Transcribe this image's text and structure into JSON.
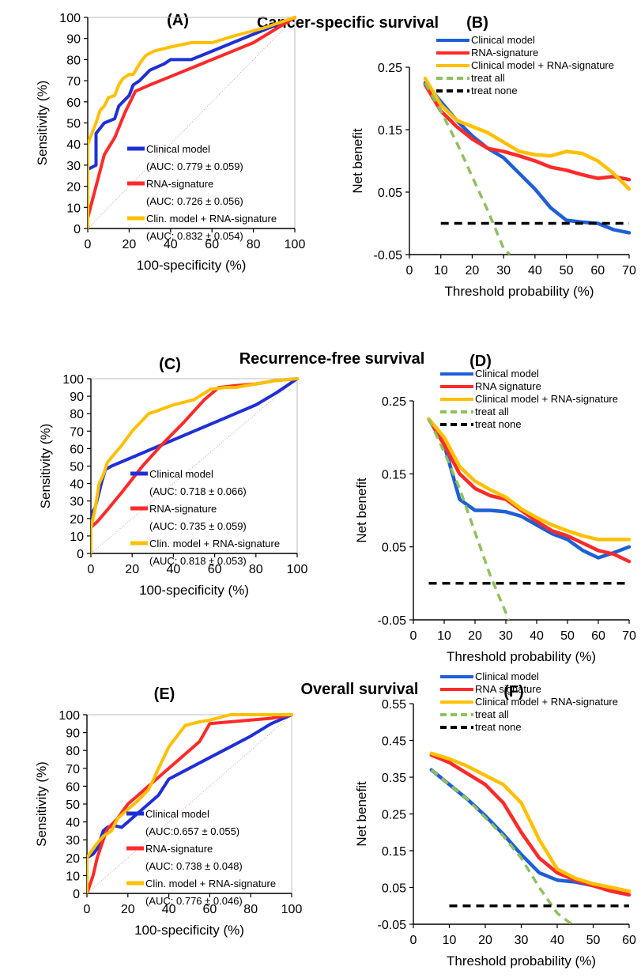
{
  "sections": [
    {
      "title": "Cancer-specific survival"
    },
    {
      "title": "Recurrence-free survival"
    },
    {
      "title": "Overall survival"
    }
  ],
  "chart_data": [
    {
      "id": "roc_A",
      "panel_label": "(A)",
      "type": "line",
      "xlabel": "100-specificity (%)",
      "ylabel": "Sensitivity (%)",
      "xlim": [
        0,
        100
      ],
      "ylim": [
        0,
        100
      ],
      "xticks": [
        0,
        20,
        40,
        60,
        80,
        100
      ],
      "yticks": [
        0,
        10,
        20,
        30,
        40,
        50,
        60,
        70,
        80,
        90,
        100
      ],
      "reference_line": {
        "x": [
          0,
          100
        ],
        "y": [
          0,
          100
        ],
        "color": "#d9a0a0"
      },
      "legend": {
        "placement": "bottom-right"
      },
      "series": [
        {
          "name": "Clinical model",
          "auc_label": "(AUC: 0.779 ± 0.059)",
          "color": "#1f2fd6",
          "x": [
            0,
            0,
            4,
            4,
            8,
            13,
            15,
            20,
            22,
            25,
            30,
            37,
            40,
            50,
            55,
            70,
            85,
            100
          ],
          "y": [
            0,
            28,
            30,
            45,
            50,
            52,
            58,
            63,
            68,
            70,
            75,
            78,
            80,
            80,
            82,
            88,
            94,
            100
          ]
        },
        {
          "name": "RNA-signature",
          "auc_label": "(AUC: 0.726 ± 0.056)",
          "color": "#ff2a2a",
          "x": [
            0,
            0,
            4,
            8,
            13,
            18,
            23,
            30,
            40,
            50,
            60,
            70,
            80,
            90,
            100
          ],
          "y": [
            0,
            5,
            20,
            35,
            43,
            55,
            65,
            68,
            72,
            76,
            80,
            84,
            88,
            94,
            100
          ]
        },
        {
          "name": "Clin. model + RNA-signature",
          "auc_label": "(AUC: 0.832 ± 0.054)",
          "color": "#ffc000",
          "x": [
            0,
            0,
            2,
            4,
            6,
            8,
            10,
            13,
            15,
            17,
            20,
            22,
            25,
            28,
            32,
            40,
            50,
            60,
            70,
            85,
            100
          ],
          "y": [
            0,
            40,
            45,
            50,
            56,
            58,
            62,
            63,
            68,
            71,
            73,
            73,
            78,
            82,
            84,
            86,
            88,
            88,
            91,
            95,
            100
          ]
        }
      ]
    },
    {
      "id": "dca_B",
      "panel_label": "(B)",
      "type": "line",
      "xlabel": "Threshold probability (%)",
      "ylabel": "Net benefit",
      "xlim": [
        0,
        70
      ],
      "ylim": [
        -0.05,
        0.25
      ],
      "xticks": [
        0,
        10,
        20,
        30,
        40,
        50,
        60,
        70
      ],
      "yticks": [
        -0.05,
        0.05,
        0.15,
        0.25
      ],
      "legend": {
        "placement": "top-right"
      },
      "series": [
        {
          "name": "Clinical model",
          "color": "#1f5fd6",
          "x": [
            5,
            10,
            15,
            20,
            25,
            30,
            35,
            40,
            45,
            50,
            55,
            60,
            65,
            70
          ],
          "y": [
            0.225,
            0.195,
            0.165,
            0.14,
            0.12,
            0.105,
            0.08,
            0.055,
            0.025,
            0.005,
            0.002,
            0.0,
            -0.01,
            -0.015
          ]
        },
        {
          "name": "RNA-signature",
          "color": "#ff2a2a",
          "x": [
            5,
            10,
            15,
            20,
            25,
            30,
            35,
            40,
            45,
            50,
            55,
            60,
            65,
            70
          ],
          "y": [
            0.222,
            0.18,
            0.155,
            0.135,
            0.12,
            0.115,
            0.108,
            0.1,
            0.09,
            0.085,
            0.078,
            0.072,
            0.075,
            0.07
          ]
        },
        {
          "name": "Clinical model + RNA-signature",
          "color": "#ffc000",
          "x": [
            5,
            10,
            15,
            20,
            25,
            30,
            35,
            40,
            45,
            50,
            55,
            60,
            65,
            70
          ],
          "y": [
            0.232,
            0.19,
            0.165,
            0.155,
            0.145,
            0.13,
            0.115,
            0.11,
            0.108,
            0.115,
            0.112,
            0.1,
            0.08,
            0.055
          ]
        },
        {
          "name": "treat all",
          "color": "#8fc060",
          "dashed": true,
          "x": [
            5,
            10,
            15,
            20,
            25,
            30,
            32
          ],
          "y": [
            0.225,
            0.18,
            0.13,
            0.075,
            0.02,
            -0.04,
            -0.05
          ]
        },
        {
          "name": "treat none",
          "color": "#000000",
          "dashed": true,
          "x": [
            10,
            70
          ],
          "y": [
            0,
            0
          ]
        }
      ]
    },
    {
      "id": "roc_C",
      "panel_label": "(C)",
      "type": "line",
      "xlabel": "100-specificity (%)",
      "ylabel": "Sensitivity (%)",
      "xlim": [
        0,
        100
      ],
      "ylim": [
        0,
        100
      ],
      "xticks": [
        0,
        20,
        40,
        60,
        80,
        100
      ],
      "yticks": [
        0,
        10,
        20,
        30,
        40,
        50,
        60,
        70,
        80,
        90,
        100
      ],
      "reference_line": {
        "x": [
          0,
          100
        ],
        "y": [
          0,
          100
        ],
        "color": "#d9a0a0"
      },
      "legend": {
        "placement": "bottom-right"
      },
      "series": [
        {
          "name": "Clinical model",
          "auc_label": "(AUC: 0.718 ± 0.066)",
          "color": "#1f2fd6",
          "x": [
            0,
            0,
            2,
            4,
            5,
            7,
            10,
            20,
            30,
            40,
            50,
            60,
            70,
            80,
            90,
            100
          ],
          "y": [
            0,
            22,
            26,
            35,
            40,
            48,
            50,
            55,
            60,
            65,
            70,
            75,
            80,
            85,
            92,
            100
          ]
        },
        {
          "name": "RNA-signature",
          "auc_label": "(AUC: 0.735 ± 0.059)",
          "color": "#ff2a2a",
          "x": [
            0,
            0,
            3,
            8,
            15,
            25,
            35,
            45,
            55,
            62,
            70,
            80,
            90,
            100
          ],
          "y": [
            0,
            15,
            18,
            25,
            35,
            50,
            63,
            75,
            88,
            95,
            96,
            97,
            99,
            100
          ]
        },
        {
          "name": "Clin. model + RNA-signature",
          "auc_label": "(AUC: 0.818 ± 0.053)",
          "color": "#ffc000",
          "x": [
            0,
            0,
            2,
            4,
            6,
            8,
            10,
            15,
            20,
            28,
            33,
            40,
            50,
            58,
            65,
            70,
            80,
            90,
            100
          ],
          "y": [
            0,
            15,
            25,
            40,
            45,
            52,
            55,
            62,
            70,
            80,
            82,
            85,
            88,
            94,
            95,
            95,
            97,
            99,
            100
          ]
        }
      ]
    },
    {
      "id": "dca_D",
      "panel_label": "(D)",
      "type": "line",
      "xlabel": "Threshold probability (%)",
      "ylabel": "Net benefit",
      "xlim": [
        0,
        70
      ],
      "ylim": [
        -0.05,
        0.25
      ],
      "xticks": [
        0,
        10,
        20,
        30,
        40,
        50,
        60,
        70
      ],
      "yticks": [
        -0.05,
        0.05,
        0.15,
        0.25
      ],
      "legend": {
        "placement": "top-right"
      },
      "series": [
        {
          "name": "Clinical model",
          "color": "#1f5fd6",
          "x": [
            5,
            10,
            15,
            20,
            25,
            30,
            35,
            40,
            45,
            50,
            55,
            60,
            65,
            70
          ],
          "y": [
            0.225,
            0.19,
            0.115,
            0.1,
            0.1,
            0.098,
            0.092,
            0.08,
            0.068,
            0.06,
            0.045,
            0.035,
            0.042,
            0.05
          ]
        },
        {
          "name": "RNA signature",
          "color": "#ff2a2a",
          "x": [
            5,
            10,
            15,
            20,
            25,
            30,
            35,
            40,
            45,
            50,
            55,
            60,
            65,
            70
          ],
          "y": [
            0.225,
            0.19,
            0.15,
            0.13,
            0.12,
            0.115,
            0.1,
            0.085,
            0.072,
            0.065,
            0.055,
            0.045,
            0.04,
            0.03
          ]
        },
        {
          "name": "Clinical model + RNA-signature",
          "color": "#ffc000",
          "x": [
            5,
            10,
            15,
            20,
            25,
            30,
            35,
            40,
            45,
            50,
            55,
            60,
            65,
            70
          ],
          "y": [
            0.225,
            0.2,
            0.16,
            0.14,
            0.128,
            0.118,
            0.102,
            0.09,
            0.08,
            0.072,
            0.065,
            0.06,
            0.06,
            0.06
          ]
        },
        {
          "name": "treat all",
          "color": "#8fc060",
          "dashed": true,
          "x": [
            5,
            10,
            15,
            20,
            25,
            30,
            31
          ],
          "y": [
            0.225,
            0.18,
            0.13,
            0.07,
            0.01,
            -0.04,
            -0.05
          ]
        },
        {
          "name": "treat none",
          "color": "#000000",
          "dashed": true,
          "x": [
            5,
            70
          ],
          "y": [
            0,
            0
          ]
        }
      ]
    },
    {
      "id": "roc_E",
      "panel_label": "(E)",
      "type": "line",
      "xlabel": "100-specificity (%)",
      "ylabel": "Sensitivity (%)",
      "xlim": [
        0,
        100
      ],
      "ylim": [
        0,
        100
      ],
      "xticks": [
        0,
        20,
        40,
        60,
        80,
        100
      ],
      "yticks": [
        0,
        10,
        20,
        30,
        40,
        50,
        60,
        70,
        80,
        90,
        100
      ],
      "reference_line": {
        "x": [
          0,
          100
        ],
        "y": [
          0,
          100
        ],
        "color": "#d9a0a0"
      },
      "legend": {
        "placement": "bottom-right"
      },
      "series": [
        {
          "name": "Clinical model",
          "auc_label": "(AUC:0.657 ± 0.055)",
          "color": "#1f2fd6",
          "x": [
            0,
            0,
            3,
            5,
            8,
            10,
            13,
            17,
            20,
            25,
            30,
            35,
            40,
            50,
            60,
            70,
            80,
            90,
            100
          ],
          "y": [
            0,
            20,
            22,
            25,
            35,
            37,
            38,
            37,
            40,
            45,
            50,
            55,
            64,
            70,
            76,
            82,
            88,
            95,
            100
          ]
        },
        {
          "name": "RNA-signature",
          "auc_label": "(AUC: 0.738 ± 0.048)",
          "color": "#ff2a2a",
          "x": [
            0,
            3,
            5,
            8,
            10,
            15,
            20,
            25,
            30,
            35,
            40,
            45,
            55,
            60,
            70,
            80,
            90,
            100
          ],
          "y": [
            0,
            10,
            20,
            30,
            36,
            42,
            50,
            55,
            60,
            65,
            70,
            75,
            85,
            95,
            96,
            97,
            98,
            100
          ]
        },
        {
          "name": "Clin. model + RNA-signature",
          "auc_label": "(AUC: 0.776 ± 0.046)",
          "color": "#ffc000",
          "x": [
            0,
            0,
            3,
            5,
            8,
            12,
            15,
            20,
            25,
            30,
            33,
            35,
            40,
            48,
            55,
            60,
            70,
            80,
            90,
            100
          ],
          "y": [
            0,
            20,
            25,
            28,
            32,
            35,
            42,
            47,
            52,
            58,
            65,
            70,
            82,
            94,
            96,
            97,
            100,
            100,
            100,
            100
          ]
        }
      ]
    },
    {
      "id": "dca_F",
      "panel_label": "(F)",
      "type": "line",
      "xlabel": "Threshold probability (%)",
      "ylabel": "Net benefit",
      "xlim": [
        0,
        60
      ],
      "ylim": [
        -0.05,
        0.55
      ],
      "xticks": [
        0,
        10,
        20,
        30,
        40,
        50,
        60
      ],
      "yticks": [
        -0.05,
        0.05,
        0.15,
        0.25,
        0.35,
        0.45,
        0.55
      ],
      "legend": {
        "placement": "top-right"
      },
      "series": [
        {
          "name": "Clinical model",
          "color": "#1f5fd6",
          "x": [
            5,
            10,
            15,
            20,
            25,
            30,
            35,
            40,
            45,
            50,
            55,
            60
          ],
          "y": [
            0.37,
            0.33,
            0.29,
            0.245,
            0.195,
            0.14,
            0.09,
            0.07,
            0.065,
            0.055,
            0.045,
            0.04
          ]
        },
        {
          "name": "RNA signature",
          "color": "#ff2a2a",
          "x": [
            5,
            10,
            15,
            20,
            25,
            30,
            35,
            40,
            45,
            50,
            55,
            60
          ],
          "y": [
            0.41,
            0.39,
            0.36,
            0.33,
            0.28,
            0.2,
            0.13,
            0.09,
            0.07,
            0.055,
            0.04,
            0.03
          ]
        },
        {
          "name": "Clinical model + RNA-signature",
          "color": "#ffc000",
          "x": [
            5,
            10,
            15,
            20,
            25,
            30,
            35,
            40,
            45,
            50,
            55,
            60
          ],
          "y": [
            0.415,
            0.4,
            0.38,
            0.355,
            0.33,
            0.28,
            0.18,
            0.1,
            0.075,
            0.06,
            0.05,
            0.04
          ]
        },
        {
          "name": "treat all",
          "color": "#8fc060",
          "dashed": true,
          "x": [
            5,
            10,
            15,
            20,
            25,
            30,
            35,
            40,
            44
          ],
          "y": [
            0.37,
            0.33,
            0.29,
            0.24,
            0.19,
            0.13,
            0.05,
            -0.02,
            -0.05
          ]
        },
        {
          "name": "treat none",
          "color": "#000000",
          "dashed": true,
          "x": [
            10,
            60
          ],
          "y": [
            0,
            0
          ]
        }
      ]
    }
  ]
}
